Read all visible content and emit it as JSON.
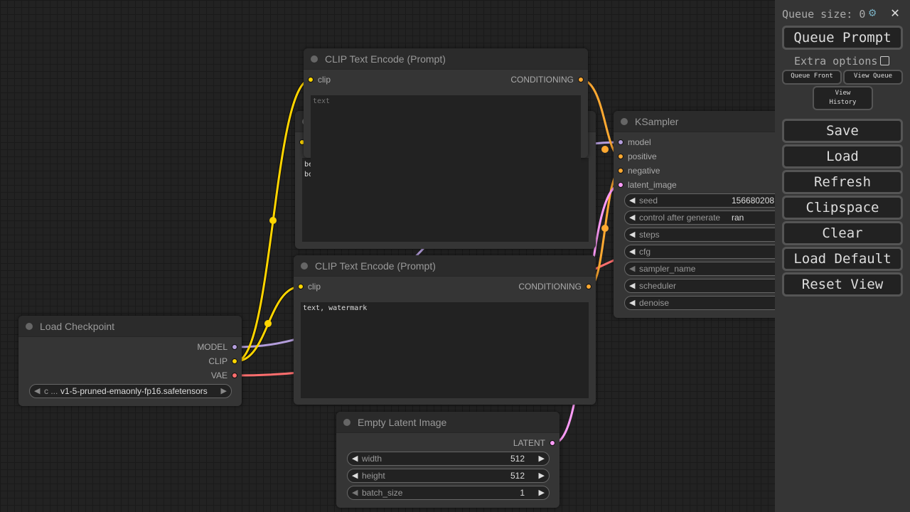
{
  "colors": {
    "model": "#b39ddb",
    "clip": "#ffd500",
    "vae": "#ff6e6e",
    "conditioning": "#ffa931",
    "latent": "#ff9cf9"
  },
  "nodes": {
    "clip_top": {
      "title": "CLIP Text Encode (Prompt)",
      "input": "clip",
      "output": "CONDITIONING",
      "placeholder": "text"
    },
    "clip_back": {
      "text": "be\nbo"
    },
    "clip_neg": {
      "title": "CLIP Text Encode (Prompt)",
      "input": "clip",
      "output": "CONDITIONING",
      "text": "text, watermark"
    },
    "ksampler": {
      "title": "KSampler",
      "inputs": [
        "model",
        "positive",
        "negative",
        "latent_image"
      ],
      "widgets": [
        {
          "label": "seed",
          "value": "156680208"
        },
        {
          "label": "control after generate",
          "value": "ran"
        },
        {
          "label": "steps",
          "value": ""
        },
        {
          "label": "cfg",
          "value": ""
        },
        {
          "label": "sampler_name",
          "value": ""
        },
        {
          "label": "scheduler",
          "value": ""
        },
        {
          "label": "denoise",
          "value": ""
        }
      ]
    },
    "checkpoint": {
      "title": "Load Checkpoint",
      "outputs": [
        "MODEL",
        "CLIP",
        "VAE"
      ],
      "widget_label": "c ...",
      "widget_value": "v1-5-pruned-emaonly-fp16.safetensors"
    },
    "latent": {
      "title": "Empty Latent Image",
      "output": "LATENT",
      "widgets": [
        {
          "label": "width",
          "value": "512"
        },
        {
          "label": "height",
          "value": "512"
        },
        {
          "label": "batch_size",
          "value": "1"
        }
      ]
    }
  },
  "sidebar": {
    "queue_size": "Queue size: 0",
    "queue_prompt": "Queue Prompt",
    "extra_options": "Extra options",
    "queue_front": "Queue Front",
    "view_queue": "View Queue",
    "view_history": "View History",
    "buttons": [
      "Save",
      "Load",
      "Refresh",
      "Clipspace",
      "Clear",
      "Load Default",
      "Reset View"
    ]
  }
}
